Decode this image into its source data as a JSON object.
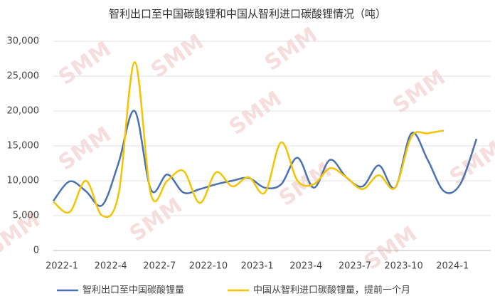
{
  "chart_data": {
    "type": "line",
    "title": "智利出口至中国碳酸锂和中国从智利进口碳酸锂情况（吨）",
    "watermark": "SMM",
    "categories": [
      "2022-1",
      null,
      null,
      "2022-4",
      null,
      null,
      "2022-7",
      null,
      null,
      "2022-10",
      null,
      null,
      "2023-1",
      null,
      null,
      "2023-4",
      null,
      null,
      "2023-7",
      null,
      null,
      "2023-10",
      null,
      null,
      "2024-1",
      null,
      null
    ],
    "series": [
      {
        "name": "智利出口至中国碳酸锂量",
        "color": "#4a72b0",
        "values": [
          7100,
          9900,
          8500,
          6500,
          12500,
          20000,
          8700,
          10900,
          8300,
          8800,
          9500,
          10000,
          10400,
          9000,
          9500,
          13300,
          9000,
          13000,
          10500,
          9200,
          12200,
          9000,
          16800,
          13000,
          8500,
          9500,
          16000
        ]
      },
      {
        "name": "中国从智利进口碳酸锂量，提前一个月",
        "color": "#f5c400",
        "values": [
          7000,
          5500,
          10000,
          5000,
          8000,
          27000,
          8000,
          10000,
          11400,
          6800,
          11200,
          9200,
          10500,
          8300,
          15500,
          10000,
          9500,
          11800,
          10500,
          8800,
          10800,
          9000,
          16300,
          16800,
          17200,
          null,
          null
        ]
      }
    ],
    "ylim": [
      0,
      30000
    ],
    "yticks": [
      0,
      {
        "value": 5000,
        "label": "5,000"
      },
      {
        "value": 10000,
        "label": "10,000"
      },
      {
        "value": 15000,
        "label": "15,000"
      },
      {
        "value": 20000,
        "label": "20,000"
      },
      {
        "value": 25000,
        "label": "25,000"
      },
      {
        "value": 30000,
        "label": "30,000"
      }
    ],
    "grid": true,
    "legend": "bottom"
  }
}
